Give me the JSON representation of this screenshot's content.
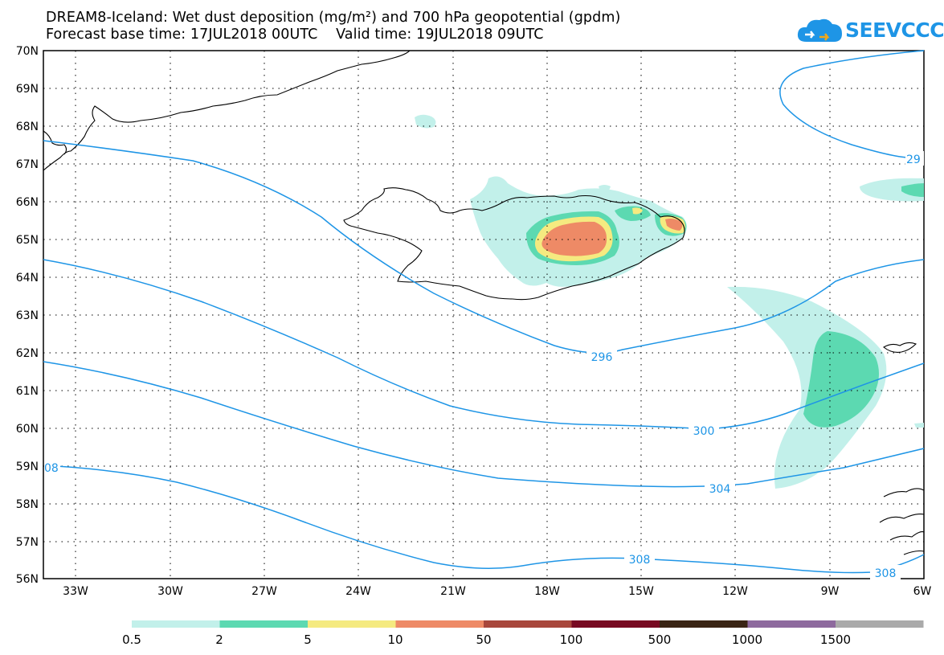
{
  "header": {
    "title_line1": "DREAM8-Iceland: Wet dust deposition (mg/m²) and 700 hPa geopotential (gpdm)",
    "title_line2": "Forecast base time: 17JUL2018 00UTC    Valid time: 19JUL2018 09UTC"
  },
  "logo": {
    "text": "SEEVCCC",
    "icon": "cloud-logo-icon",
    "color": "#1e95e6"
  },
  "map": {
    "lat_labels": [
      "70N",
      "69N",
      "68N",
      "67N",
      "66N",
      "65N",
      "64N",
      "63N",
      "62N",
      "61N",
      "60N",
      "59N",
      "58N",
      "57N",
      "56N"
    ],
    "lon_labels": [
      "33W",
      "30W",
      "27W",
      "24W",
      "21W",
      "18W",
      "15W",
      "12W",
      "9W",
      "6W"
    ],
    "contour_labels": [
      "296",
      "300",
      "304",
      "308",
      "308",
      "29",
      "08"
    ],
    "contour_color": "#1e95e6"
  },
  "legend": {
    "colors": [
      "#c2f0ea",
      "#5cd9b1",
      "#f5ea80",
      "#ee8a66",
      "#a8473c",
      "#780a22",
      "#3a2515",
      "#8e6a9e",
      "#aaaaaa"
    ],
    "labels": [
      "0.5",
      "2",
      "5",
      "10",
      "50",
      "100",
      "500",
      "1000",
      "1500"
    ]
  }
}
